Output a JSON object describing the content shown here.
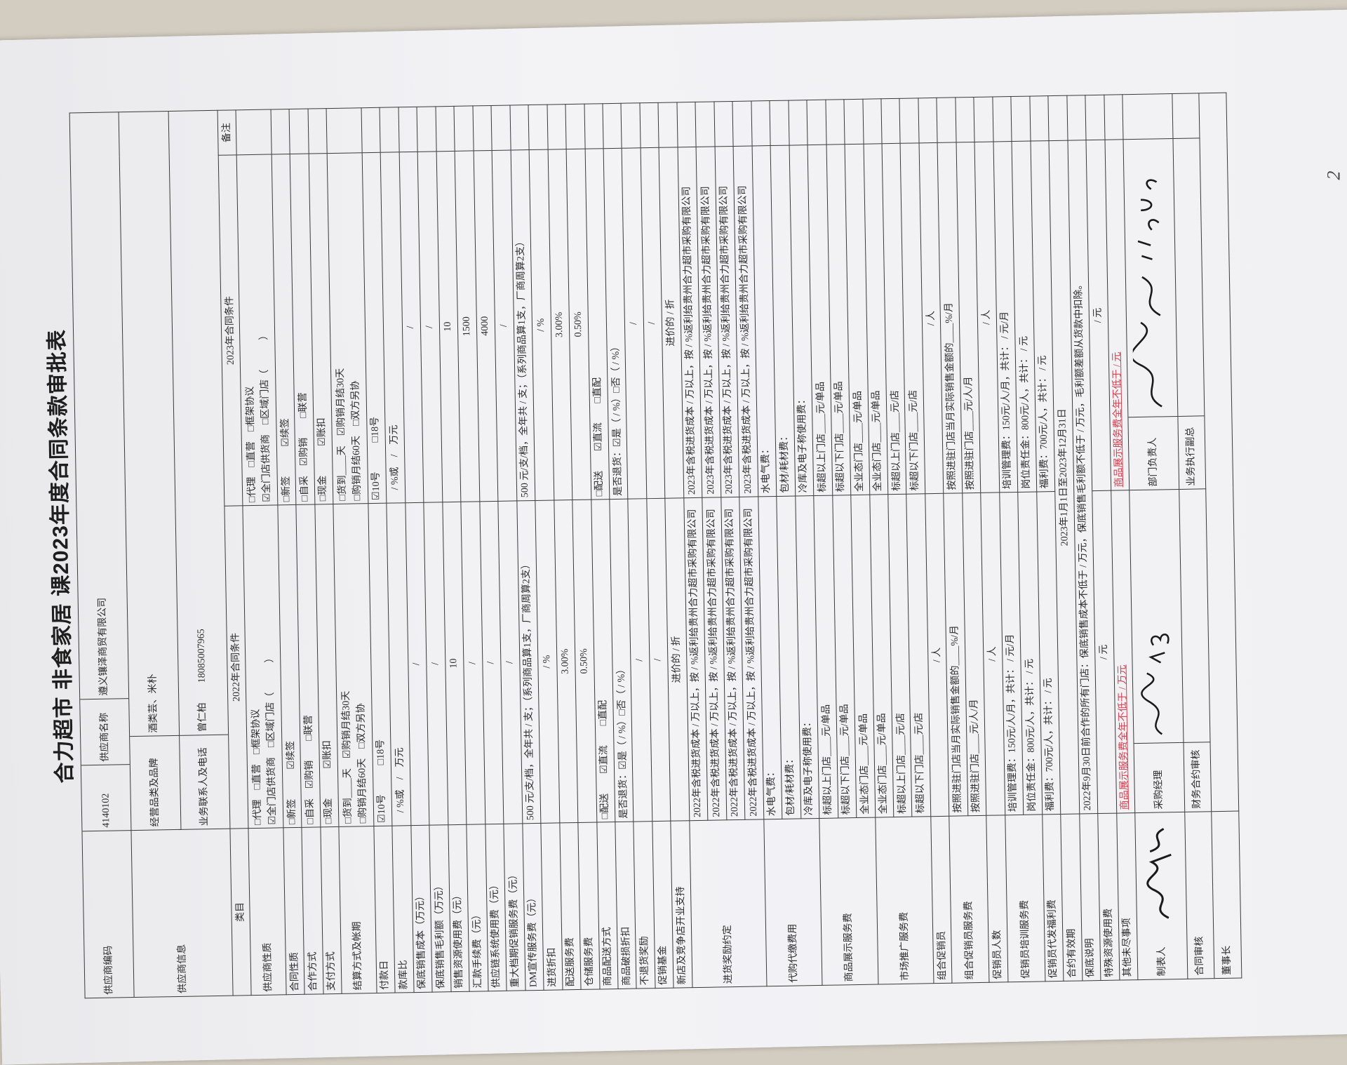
{
  "page_mark": "2",
  "title": "合力超市 非食家居 课2023年度合同条款审批表",
  "supplier": {
    "code_label": "供应商编码",
    "code": "4140102",
    "name_label": "供应商名称",
    "name": "遵义镶泽商贸有限公司",
    "info_label": "供应商信息",
    "brand_label": "经营品类及品牌",
    "brand": "酒类芸、米朴",
    "contact_label": "业务联系人及电话",
    "contact": "曾仁柏　　18085007965"
  },
  "header": {
    "category": "类目",
    "y2022": "2022年合同条件",
    "y2023": "2023年合同条件",
    "remarks": "备注"
  },
  "rows": [
    {
      "label": "供应商性质",
      "lines": [
        {
          "y2022": "□代理　□直营　□框架协议\n☑全门店供货商　□区域门店（　　　）",
          "y2023": "□代理　□直营　□框架协议\n☑全门店供货商　□区域门店（　　　）"
        }
      ]
    },
    {
      "label": "合同性质",
      "lines": [
        {
          "y2022": "□新签　　　☑续签",
          "y2023": "□新签　　　☑续签"
        }
      ]
    },
    {
      "label": "合作方式",
      "lines": [
        {
          "y2022": "□自采　☑购销　　□联营",
          "y2023": "□自采　☑购销　　□联营"
        }
      ]
    },
    {
      "label": "支付方式",
      "lines": [
        {
          "y2022": "□现金　　　☑账扣",
          "y2023": "□现金　　　☑账扣"
        }
      ]
    },
    {
      "label": "结算方式及帐期",
      "lines": [
        {
          "y2022": "□货到____天　☑购销月结30天\n□购销月结60天　□双方另协",
          "y2023": "□货到____天　☑购销月结30天\n□购销月结60天　□双方另协"
        }
      ]
    },
    {
      "label": "付款日",
      "lines": [
        {
          "y2022": "☑10号　　　□18号",
          "y2023": "☑10号　　　□18号"
        }
      ]
    },
    {
      "label": "款库比",
      "lines": [
        {
          "y2022": "　/ %或　/　万元",
          "y2023": "　/ %或　/　万元"
        }
      ]
    },
    {
      "label": "保底销售成本（万元）",
      "lines": [
        {
          "y2022": "/",
          "y2023": "/",
          "center": true
        }
      ]
    },
    {
      "label": "保底销售毛利额（万元）",
      "lines": [
        {
          "y2022": "/",
          "y2023": "/",
          "center": true
        }
      ]
    },
    {
      "label": "销售资源使用费（元）",
      "lines": [
        {
          "y2022": "10",
          "y2023": "10",
          "center": true
        }
      ]
    },
    {
      "label": "汇款手续费（元）",
      "lines": [
        {
          "y2022": "/",
          "y2023": "1500",
          "center": true
        }
      ]
    },
    {
      "label": "供应链系统使用费（元）",
      "lines": [
        {
          "y2022": "/",
          "y2023": "4000",
          "center": true
        }
      ]
    },
    {
      "label": "重大档期促销服务费（元）",
      "lines": [
        {
          "y2022": "/",
          "y2023": "/",
          "center": true
        }
      ]
    },
    {
      "label": "DM宣传服务费（元）",
      "lines": [
        {
          "y2022": "500 元/支/档，全年共 / 支；（系列商品算1支，厂商周算2支）",
          "y2023": "500 元/支/档，全年共 / 支；（系列商品算1支，厂商周算2支）"
        }
      ]
    },
    {
      "label": "进货折扣",
      "lines": [
        {
          "y2022": "/ %",
          "y2023": "/ %",
          "center": true
        }
      ]
    },
    {
      "label": "配送服务费",
      "lines": [
        {
          "y2022": "3.00%",
          "y2023": "3.00%",
          "center": true
        }
      ]
    },
    {
      "label": "仓储服务费",
      "lines": [
        {
          "y2022": "0.50%",
          "y2023": "0.50%",
          "center": true
        }
      ]
    },
    {
      "label": "商品配送方式",
      "lines": [
        {
          "y2022": "□配送　　☑直流　　□直配",
          "y2023": "□配送　　☑直流　　□直配"
        }
      ]
    },
    {
      "label": "商品破损折扣",
      "lines": [
        {
          "y2022": "是否退货：☑是（ / %）□否（ / %）",
          "y2023": "是否退货：☑是（ / %）□否（ / %）"
        }
      ]
    },
    {
      "label": "不退货奖励",
      "lines": [
        {
          "y2022": "/",
          "y2023": "/",
          "center": true
        }
      ]
    },
    {
      "label": "促销基金",
      "lines": [
        {
          "y2022": "/",
          "y2023": "/",
          "center": true
        }
      ]
    },
    {
      "label": "新店及竞争店开业支持",
      "lines": [
        {
          "y2022": "进价的 / 折",
          "y2023": "进价的 / 折",
          "center": true
        }
      ]
    },
    {
      "label": "进货奖励约定",
      "lines": [
        {
          "y2022": "2022年含税进货成本 / 万以上，按 / %返利给贵州合力超市采购有限公司",
          "y2023": "2023年含税进货成本 / 万以上，按 / %返利给贵州合力超市采购有限公司"
        },
        {
          "y2022": "2022年含税进货成本 / 万以上，按 / %返利给贵州合力超市采购有限公司",
          "y2023": "2023年含税进货成本 / 万以上，按 / %返利给贵州合力超市采购有限公司"
        },
        {
          "y2022": "2022年含税进货成本 / 万以上，按 / %返利给贵州合力超市采购有限公司",
          "y2023": "2023年含税进货成本 / 万以上，按 / %返利给贵州合力超市采购有限公司"
        },
        {
          "y2022": "2022年含税进货成本 / 万以上，按 / %返利给贵州合力超市采购有限公司",
          "y2023": "2023年含税进货成本 / 万以上，按 / %返利给贵州合力超市采购有限公司"
        }
      ]
    },
    {
      "label": "代购代缴费用",
      "lines": [
        {
          "y2022": "水电气费：",
          "y2023": "水电气费："
        },
        {
          "y2022": "包材/耗材费：",
          "y2023": "包材/耗材费："
        },
        {
          "y2022": "冷库及电子称使用费：",
          "y2023": "冷库及电子称使用费："
        }
      ]
    },
    {
      "label": "商品展示服务费",
      "lines": [
        {
          "y2022": "标超以上门店____元/单品",
          "y2023": "标超以上门店____元/单品"
        },
        {
          "y2022": "标超以下门店____元/单品",
          "y2023": "标超以下门店____元/单品"
        },
        {
          "y2022": "全业态门店____元/单品",
          "y2023": "全业态门店____元/单品"
        }
      ]
    },
    {
      "label": "市场推广服务费",
      "lines": [
        {
          "y2022": "全业态门店____元/单品",
          "y2023": "全业态门店____元/单品"
        },
        {
          "y2022": "标超以上门店____元/店",
          "y2023": "标超以上门店____元/店"
        },
        {
          "y2022": "标超以下门店____元/店",
          "y2023": "标超以下门店____元/店"
        }
      ]
    },
    {
      "label": "组合促销员",
      "lines": [
        {
          "y2022": "/ 人",
          "y2023": "/ 人",
          "center": true
        }
      ]
    },
    {
      "label": "组合促销员服务费",
      "lines": [
        {
          "y2022": "按照进驻门店当月实际销售金额的____%/月",
          "y2023": "按照进驻门店当月实际销售金额的____%/月"
        },
        {
          "y2022": "按照进驻门店____元/人/月",
          "y2023": "按照进驻门店____元/人/月"
        }
      ]
    },
    {
      "label": "促销员人数",
      "lines": [
        {
          "y2022": "/ 人",
          "y2023": "/ 人",
          "center": true
        }
      ]
    },
    {
      "label": "促销员培训服务费",
      "lines": [
        {
          "y2022": "培训管理费：150元/人/月，共计： / 元/月",
          "y2023": "培训管理费：150元/人/月，共计： / 元/月"
        },
        {
          "y2022": "岗位责任金：800元/人，共计： / 元",
          "y2023": "岗位责任金：800元/人，共计： / 元"
        }
      ]
    },
    {
      "label": "促销员代发福利费",
      "lines": [
        {
          "y2022": "福利费：700元/人，共计： / 元",
          "y2023": "福利费：700元/人，共计： / 元"
        }
      ]
    },
    {
      "label": "合约有效期",
      "lines": [
        {
          "merged": "2023年1月1日至2023年12月31日",
          "center": true
        }
      ]
    },
    {
      "label": "保底说明",
      "lines": [
        {
          "merged": "2022年9月30日前合作的所有门店：保底销售成本不低于 / 万元，保底销售毛利额不低于 / 万元，毛利额差额从货款中扣除。"
        }
      ]
    },
    {
      "label": "特殊资源使用费",
      "lines": [
        {
          "y2022": "/ 元",
          "y2023": "/ 元",
          "center": true
        }
      ]
    },
    {
      "label": "其他未尽事项",
      "lines": [
        {
          "y2022": "商品展示服务费全年不低于 / 万元",
          "y2023": "商品展示服务费全年不低于 / 元",
          "red": true
        }
      ]
    }
  ],
  "signoff": {
    "preparer": "制表人",
    "purchase_manager": "采购经理",
    "dept_head": "部门负责人",
    "contract_review": "合同审核",
    "finance_review": "财务合约审核",
    "exec_vp": "业务执行副总",
    "chairman": "董事长",
    "ink_color": "#1a1a1a"
  },
  "colors": {
    "paper": "#f2f2f5",
    "line": "#3a3a3a",
    "text": "#2b2b2b",
    "red_note": "#d2404f"
  }
}
